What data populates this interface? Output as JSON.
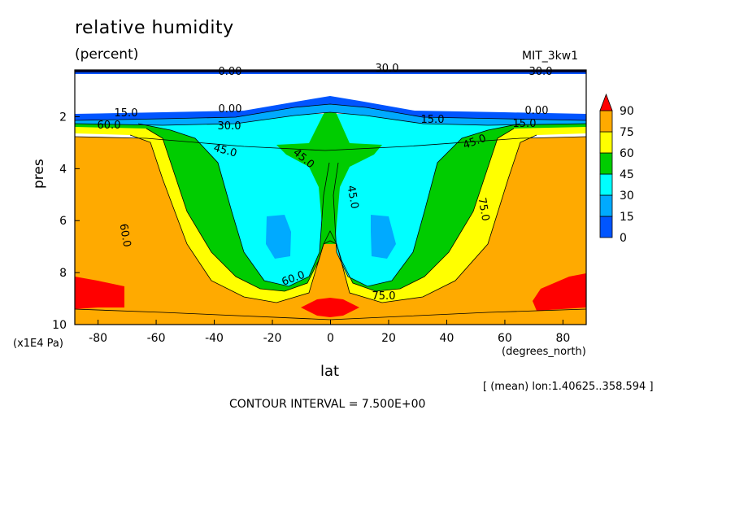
{
  "title": "relative humidity",
  "units": "(percent)",
  "dataset_label": "MIT_3kw1",
  "ylabel": "pres",
  "y_multiplier": "(x1E4 Pa)",
  "xlabel": "lat",
  "x_units": "(degrees_north)",
  "averaging_note": "[ (mean) lon:1.40625..358.594 ]",
  "contour_interval": "CONTOUR INTERVAL = 7.500E+00",
  "chart_data": {
    "type": "heatmap",
    "title": "relative humidity",
    "xlabel": "lat",
    "ylabel": "pres",
    "xlim": [
      -88,
      88
    ],
    "ylim": [
      10,
      0.2
    ],
    "x_ticks": [
      "-80",
      "-60",
      "-40",
      "-20",
      "0",
      "20",
      "40",
      "60",
      "80"
    ],
    "y_ticks": [
      "2",
      "4",
      "6",
      "8",
      "10"
    ],
    "colorbar": {
      "levels": [
        "0",
        "15",
        "30",
        "45",
        "60",
        "75",
        "90"
      ],
      "colors": [
        "#0055ff",
        "#00aaff",
        "#00ffff",
        "#00cc00",
        "#ffff00",
        "#ffaa00",
        "#ff0000"
      ]
    },
    "contour_labels": [
      "15.0",
      "0.00",
      "30.0",
      "0.00",
      "15.0",
      "60.0",
      "0.00",
      "30.0",
      "15.0",
      "30.0",
      "45.0",
      "45.0",
      "45.0",
      "45.0",
      "60.0",
      "75.0",
      "60.0",
      "75.0"
    ],
    "description_values": {
      "polar_surface_max": 90,
      "tropical_surface_max": 90,
      "subtropical_mid_min": 15,
      "stratosphere": 0
    }
  }
}
